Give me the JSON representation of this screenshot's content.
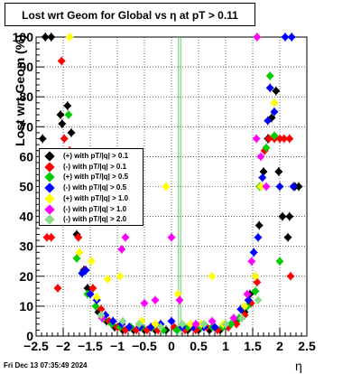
{
  "title": "Lost wrt Geom for Global vs    η  at pT > 0.11",
  "footer": "Fri Dec 13 07:35:49 2024",
  "chart_data": {
    "type": "scatter",
    "title": "Lost wrt Geom for Global vs    η  at pT > 0.11",
    "xlabel": "η",
    "ylabel": "Lost wrt Geom (%)",
    "xlim": [
      -2.5,
      2.5
    ],
    "ylim": [
      0,
      100
    ],
    "xticks": [
      -2.5,
      -2,
      -1.5,
      -1,
      -0.5,
      0,
      0.5,
      1,
      1.5,
      2,
      2.5
    ],
    "xtick_labels": [
      "−2.5",
      "−2",
      "−1.5",
      "−1",
      "−0.5",
      "0",
      "0.5",
      "1",
      "1.5",
      "2",
      "2.5"
    ],
    "yticks": [
      0,
      10,
      20,
      30,
      40,
      50,
      60,
      70,
      80,
      90,
      100
    ],
    "grid": true,
    "legend_position": "left-middle",
    "series": [
      {
        "name": "(+) with pT/|q| > 0.1",
        "color": "#000000",
        "points": [
          [
            -2.38,
            66
          ],
          [
            -2.33,
            100
          ],
          [
            -2.22,
            100
          ],
          [
            -2.05,
            74
          ],
          [
            -2.02,
            71
          ],
          [
            -1.92,
            77
          ],
          [
            -1.85,
            68
          ],
          [
            -1.75,
            34
          ],
          [
            -1.62,
            22
          ],
          [
            -1.55,
            16
          ],
          [
            -1.35,
            8
          ],
          [
            -1.2,
            5
          ],
          [
            -1.05,
            3
          ],
          [
            -0.9,
            2
          ],
          [
            -0.7,
            2
          ],
          [
            -0.5,
            2
          ],
          [
            -0.3,
            2
          ],
          [
            -0.1,
            2
          ],
          [
            0.1,
            2
          ],
          [
            0.3,
            2
          ],
          [
            0.5,
            2
          ],
          [
            0.7,
            2
          ],
          [
            0.9,
            2
          ],
          [
            1.05,
            3
          ],
          [
            1.2,
            5
          ],
          [
            1.35,
            8
          ],
          [
            1.45,
            14
          ],
          [
            1.55,
            20
          ],
          [
            1.62,
            37
          ],
          [
            1.7,
            55
          ],
          [
            1.78,
            66
          ],
          [
            1.85,
            73
          ],
          [
            1.93,
            82
          ],
          [
            1.98,
            55
          ],
          [
            2.05,
            40
          ],
          [
            2.18,
            40
          ],
          [
            2.15,
            33
          ],
          [
            2.28,
            50
          ],
          [
            2.35,
            50
          ]
        ]
      },
      {
        "name": "(-) with pT/|q| > 0.1",
        "color": "#ff0000",
        "points": [
          [
            -2.3,
            33
          ],
          [
            -2.22,
            33
          ],
          [
            -2.1,
            16
          ],
          [
            -2.03,
            92
          ],
          [
            -1.98,
            66
          ],
          [
            -1.88,
            62
          ],
          [
            -1.72,
            33
          ],
          [
            -1.6,
            22
          ],
          [
            -1.45,
            16
          ],
          [
            -1.3,
            9
          ],
          [
            -1.15,
            5
          ],
          [
            -1.0,
            3
          ],
          [
            -0.85,
            2
          ],
          [
            -0.65,
            2
          ],
          [
            -0.45,
            2
          ],
          [
            -0.25,
            2
          ],
          [
            0.05,
            3
          ],
          [
            0.25,
            2
          ],
          [
            0.45,
            2
          ],
          [
            0.65,
            3
          ],
          [
            0.85,
            2
          ],
          [
            1.05,
            3
          ],
          [
            1.2,
            4
          ],
          [
            1.35,
            7
          ],
          [
            1.47,
            11
          ],
          [
            1.58,
            18
          ],
          [
            1.65,
            50
          ],
          [
            1.72,
            62
          ],
          [
            1.8,
            66
          ],
          [
            1.9,
            66
          ],
          [
            2.0,
            66
          ],
          [
            2.08,
            66
          ],
          [
            2.18,
            66
          ],
          [
            2.2,
            20
          ]
        ]
      },
      {
        "name": "(+) with pT/|q| > 0.5",
        "color": "#00cc00",
        "points": [
          [
            -1.9,
            74
          ],
          [
            -1.75,
            26
          ],
          [
            -1.65,
            21
          ],
          [
            -1.55,
            14
          ],
          [
            -1.4,
            10
          ],
          [
            -1.25,
            6
          ],
          [
            -1.1,
            4
          ],
          [
            -0.95,
            3
          ],
          [
            -0.75,
            3
          ],
          [
            -0.55,
            3
          ],
          [
            -0.35,
            3
          ],
          [
            -0.15,
            2
          ],
          [
            0.1,
            2
          ],
          [
            0.3,
            3
          ],
          [
            0.55,
            3
          ],
          [
            0.75,
            3
          ],
          [
            0.95,
            3
          ],
          [
            1.1,
            4
          ],
          [
            1.25,
            6
          ],
          [
            1.4,
            10
          ],
          [
            1.55,
            15
          ],
          [
            1.63,
            50
          ],
          [
            1.75,
            63
          ],
          [
            1.82,
            87
          ],
          [
            1.9,
            67
          ],
          [
            2.0,
            25
          ]
        ]
      },
      {
        "name": "(-) with pT/|q| > 0.5",
        "color": "#0000ff",
        "points": [
          [
            -1.65,
            21
          ],
          [
            -1.58,
            22
          ],
          [
            -1.5,
            14
          ],
          [
            -1.38,
            12
          ],
          [
            -1.22,
            7
          ],
          [
            -1.08,
            5
          ],
          [
            -0.92,
            4
          ],
          [
            -0.78,
            3
          ],
          [
            -0.58,
            3
          ],
          [
            -0.38,
            3
          ],
          [
            -0.2,
            4
          ],
          [
            0.0,
            5
          ],
          [
            0.2,
            3
          ],
          [
            0.4,
            3
          ],
          [
            0.6,
            3
          ],
          [
            0.8,
            3
          ],
          [
            1.0,
            4
          ],
          [
            1.15,
            6
          ],
          [
            1.28,
            9
          ],
          [
            1.42,
            12
          ],
          [
            1.52,
            28
          ],
          [
            1.6,
            33
          ],
          [
            1.68,
            53
          ],
          [
            1.78,
            72
          ],
          [
            1.82,
            83
          ],
          [
            1.9,
            75
          ],
          [
            2.0,
            50
          ],
          [
            2.1,
            100
          ],
          [
            2.22,
            100
          ],
          [
            2.25,
            50
          ]
        ]
      },
      {
        "name": "(+) with pT/|q| > 1.0",
        "color": "#ffff00",
        "points": [
          [
            -1.88,
            100
          ],
          [
            -1.7,
            28
          ],
          [
            -1.48,
            25
          ],
          [
            -1.38,
            13
          ],
          [
            -1.18,
            19
          ],
          [
            -0.95,
            20
          ],
          [
            -0.55,
            5
          ],
          [
            -0.3,
            4
          ],
          [
            -0.1,
            50
          ],
          [
            0.12,
            14
          ],
          [
            0.35,
            4
          ],
          [
            0.55,
            4
          ],
          [
            0.75,
            20
          ],
          [
            0.95,
            4
          ],
          [
            1.15,
            6
          ],
          [
            1.35,
            10
          ],
          [
            1.55,
            20
          ],
          [
            1.65,
            50
          ],
          [
            1.75,
            50
          ],
          [
            1.9,
            78
          ],
          [
            1.58,
            100
          ]
        ]
      },
      {
        "name": "(-) with pT/|q| > 1.0",
        "color": "#ff00ff",
        "points": [
          [
            -1.28,
            6
          ],
          [
            -0.92,
            29
          ],
          [
            -0.85,
            33
          ],
          [
            -0.5,
            11
          ],
          [
            -0.3,
            12
          ],
          [
            0.0,
            33
          ],
          [
            0.15,
            12
          ],
          [
            0.45,
            4
          ],
          [
            0.75,
            5
          ],
          [
            1.15,
            6
          ],
          [
            1.4,
            14
          ],
          [
            1.48,
            25
          ],
          [
            1.57,
            66
          ],
          [
            1.65,
            60
          ],
          [
            1.75,
            50
          ],
          [
            1.58,
            100
          ]
        ]
      },
      {
        "name": "(-) with pT/|q| > 2.0",
        "color": "#88dd88",
        "points": [
          [
            -1.3,
            7
          ],
          [
            -0.9,
            5
          ],
          [
            -0.6,
            4
          ],
          [
            -0.2,
            3
          ],
          [
            0.2,
            4
          ],
          [
            0.6,
            4
          ],
          [
            1.0,
            4
          ],
          [
            1.3,
            6
          ],
          [
            1.6,
            12
          ]
        ]
      }
    ]
  }
}
